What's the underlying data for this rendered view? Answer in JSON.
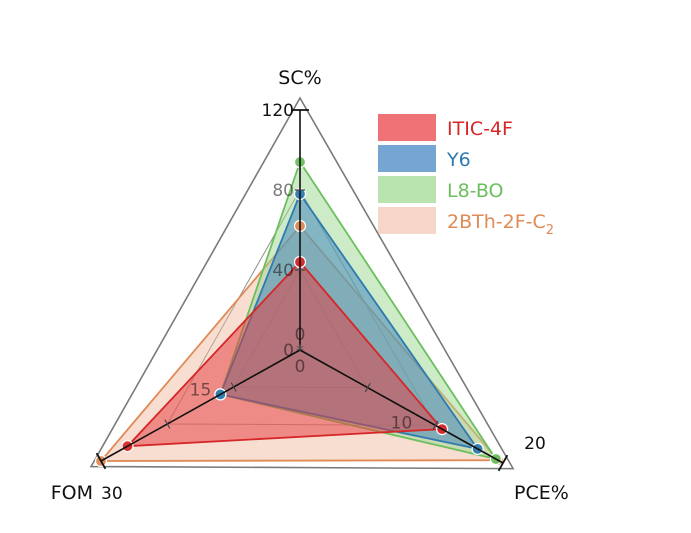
{
  "chart_data": {
    "type": "radar",
    "axes": [
      {
        "key": "SC",
        "label": "SC%",
        "max": 120,
        "ticks": [
          "0",
          "40",
          "80",
          "120"
        ]
      },
      {
        "key": "PCE",
        "label": "PCE%",
        "max": 20,
        "ticks": [
          "0",
          "10",
          "20"
        ]
      },
      {
        "key": "FOM",
        "label": "FOM",
        "max": 30,
        "ticks": [
          "0",
          "15",
          "30"
        ]
      }
    ],
    "series": [
      {
        "name": "ITIC-4F",
        "color": "#d62728",
        "fill": "#e8383c",
        "values": {
          "SC": 44,
          "PCE": 14,
          "FOM": 26
        }
      },
      {
        "name": "Y6",
        "color": "#2f7ab0",
        "fill": "#3a7fc0",
        "values": {
          "SC": 78,
          "PCE": 17.5,
          "FOM": 12
        }
      },
      {
        "name": "L8-BO",
        "color": "#6cbf5e",
        "fill": "#9bd88f",
        "values": {
          "SC": 94,
          "PCE": 19.3,
          "FOM": 12
        }
      },
      {
        "name": "2BTh-2F-C",
        "name_sub": "2",
        "color": "#e08a55",
        "fill": "#eeb59a",
        "values": {
          "SC": 62,
          "PCE": 19.5,
          "FOM": 30
        }
      }
    ]
  }
}
